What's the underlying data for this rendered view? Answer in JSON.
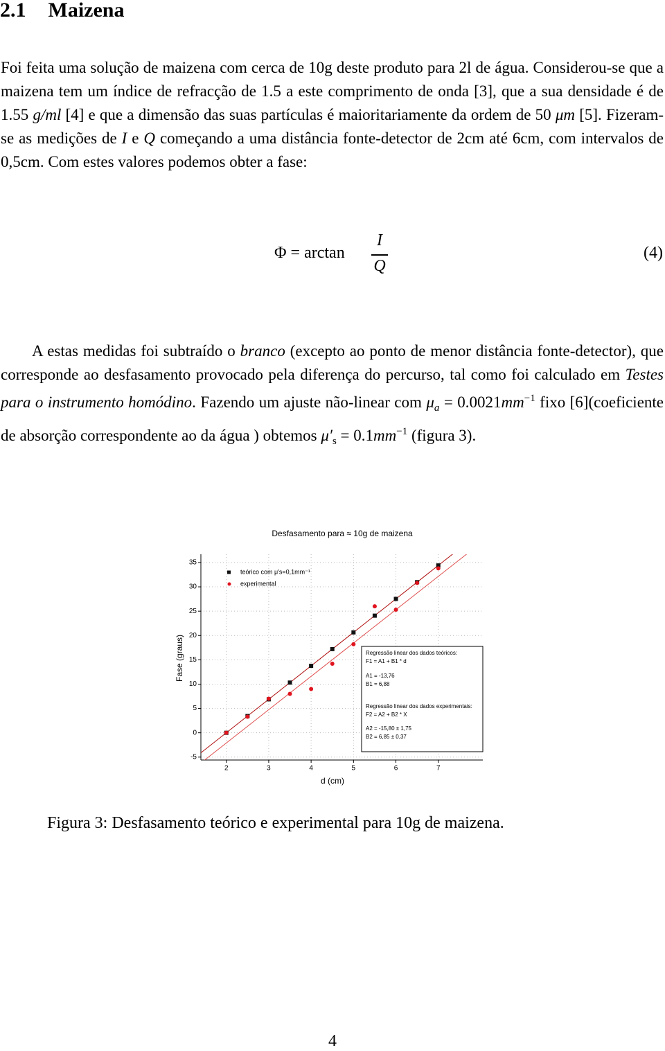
{
  "heading": {
    "number": "2.1",
    "title": "Maizena"
  },
  "paragraphs": [
    [
      "Foi feita uma solução de maizena com cerca de 10g deste produto para 2l de água. Considerou-se que a maizena tem um índice de refracção de 1.5 a este comprimento de onda [3], que a sua densidade é de 1.55 ",
      {
        "text": "g/ml",
        "style": "italic"
      },
      " [4] e que a dimensão das suas partículas é maioritariamente da ordem de 50 ",
      {
        "text": "μm",
        "style": "italic"
      },
      " [5]. Fizeram-se as medições de ",
      {
        "text": "I",
        "style": "italic"
      },
      " e ",
      {
        "text": "Q",
        "style": "italic"
      },
      " começando a uma distância fonte-detector de 2cm até 6cm, com intervalos de 0,5cm. Com estes valores podemos obter a fase:"
    ],
    [
      "A estas medidas foi subtraído o ",
      {
        "text": "branco",
        "style": "italic"
      },
      " (excepto ao ponto de menor distância fonte-detector), que corresponde ao desfasamento provocado pela diferença do percurso, tal como foi calculado em ",
      {
        "text": "Testes para o instrumento homódino",
        "style": "italic"
      },
      ". Fazendo um ajuste não-linear com ",
      {
        "text": "μ",
        "style": "italic"
      },
      {
        "text": "a",
        "style": "italic-sub"
      },
      " = 0.0021",
      {
        "text": "mm",
        "style": "italic"
      },
      {
        "text": "−1",
        "style": "sup"
      },
      " fixo [6](coeficiente de absorção correspondente ao da água ) obtemos ",
      {
        "text": "μ′",
        "style": "italic"
      },
      {
        "text": "s",
        "style": "sub"
      },
      " = 0.1",
      {
        "text": "mm",
        "style": "italic"
      },
      {
        "text": "−1",
        "style": "sup"
      },
      " (figura 3)."
    ]
  ],
  "equation": {
    "lhs": "Φ = arctan",
    "numerator": "I",
    "denominator": "Q",
    "label": "(4)"
  },
  "chart_data": {
    "type": "scatter",
    "title": "Desfasamento para ≈ 10g de maizena",
    "x_label": "d (cm)",
    "y_label": "Fase (graus)",
    "xlim": [
      1.4,
      8.05
    ],
    "ylim": [
      -5.6,
      36.7
    ],
    "xticks": [
      2,
      3,
      4,
      5,
      6,
      7
    ],
    "yticks": [
      -5,
      0,
      5,
      10,
      15,
      20,
      25,
      30,
      35
    ],
    "grid": true,
    "series": [
      {
        "name": "teórico com μ′s=0,1mm⁻¹",
        "color": "#111111",
        "marker": "square",
        "x": [
          2,
          2.5,
          3,
          3.5,
          4,
          4.5,
          5,
          5.5,
          6,
          6.5,
          7
        ],
        "values": [
          0,
          3.44,
          6.88,
          10.32,
          13.76,
          17.2,
          20.64,
          24.08,
          27.52,
          30.96,
          34.4
        ]
      },
      {
        "name": "experimental",
        "color": "#e0141e",
        "marker": "circle",
        "x": [
          2,
          2.5,
          3,
          3.5,
          4,
          4.5,
          5,
          5.5,
          6,
          6.5,
          7
        ],
        "values": [
          0,
          3.3,
          7,
          8,
          9,
          14.2,
          18.2,
          26,
          25.3,
          30.8,
          33.8
        ]
      }
    ],
    "fits": [
      {
        "intercept": -13.76,
        "slope": 6.88,
        "color": "#b01010"
      },
      {
        "intercept": -15.8,
        "slope": 6.85,
        "color": "#e05050"
      }
    ],
    "annotation": [
      "Regressão linear dos dados teóricos:",
      "F1 = A1 + B1 * d",
      "A1 = -13,76",
      "B1 = 6,88",
      "Regressão linear dos dados experimentais:",
      "F2 = A2 + B2 * X",
      "A2 = -15,80 ± 1,75",
      "B2 = 6,85 ± 0,37"
    ]
  },
  "caption": "Figura 3: Desfasamento teórico e experimental para 10g de maizena.",
  "page_number": "4"
}
